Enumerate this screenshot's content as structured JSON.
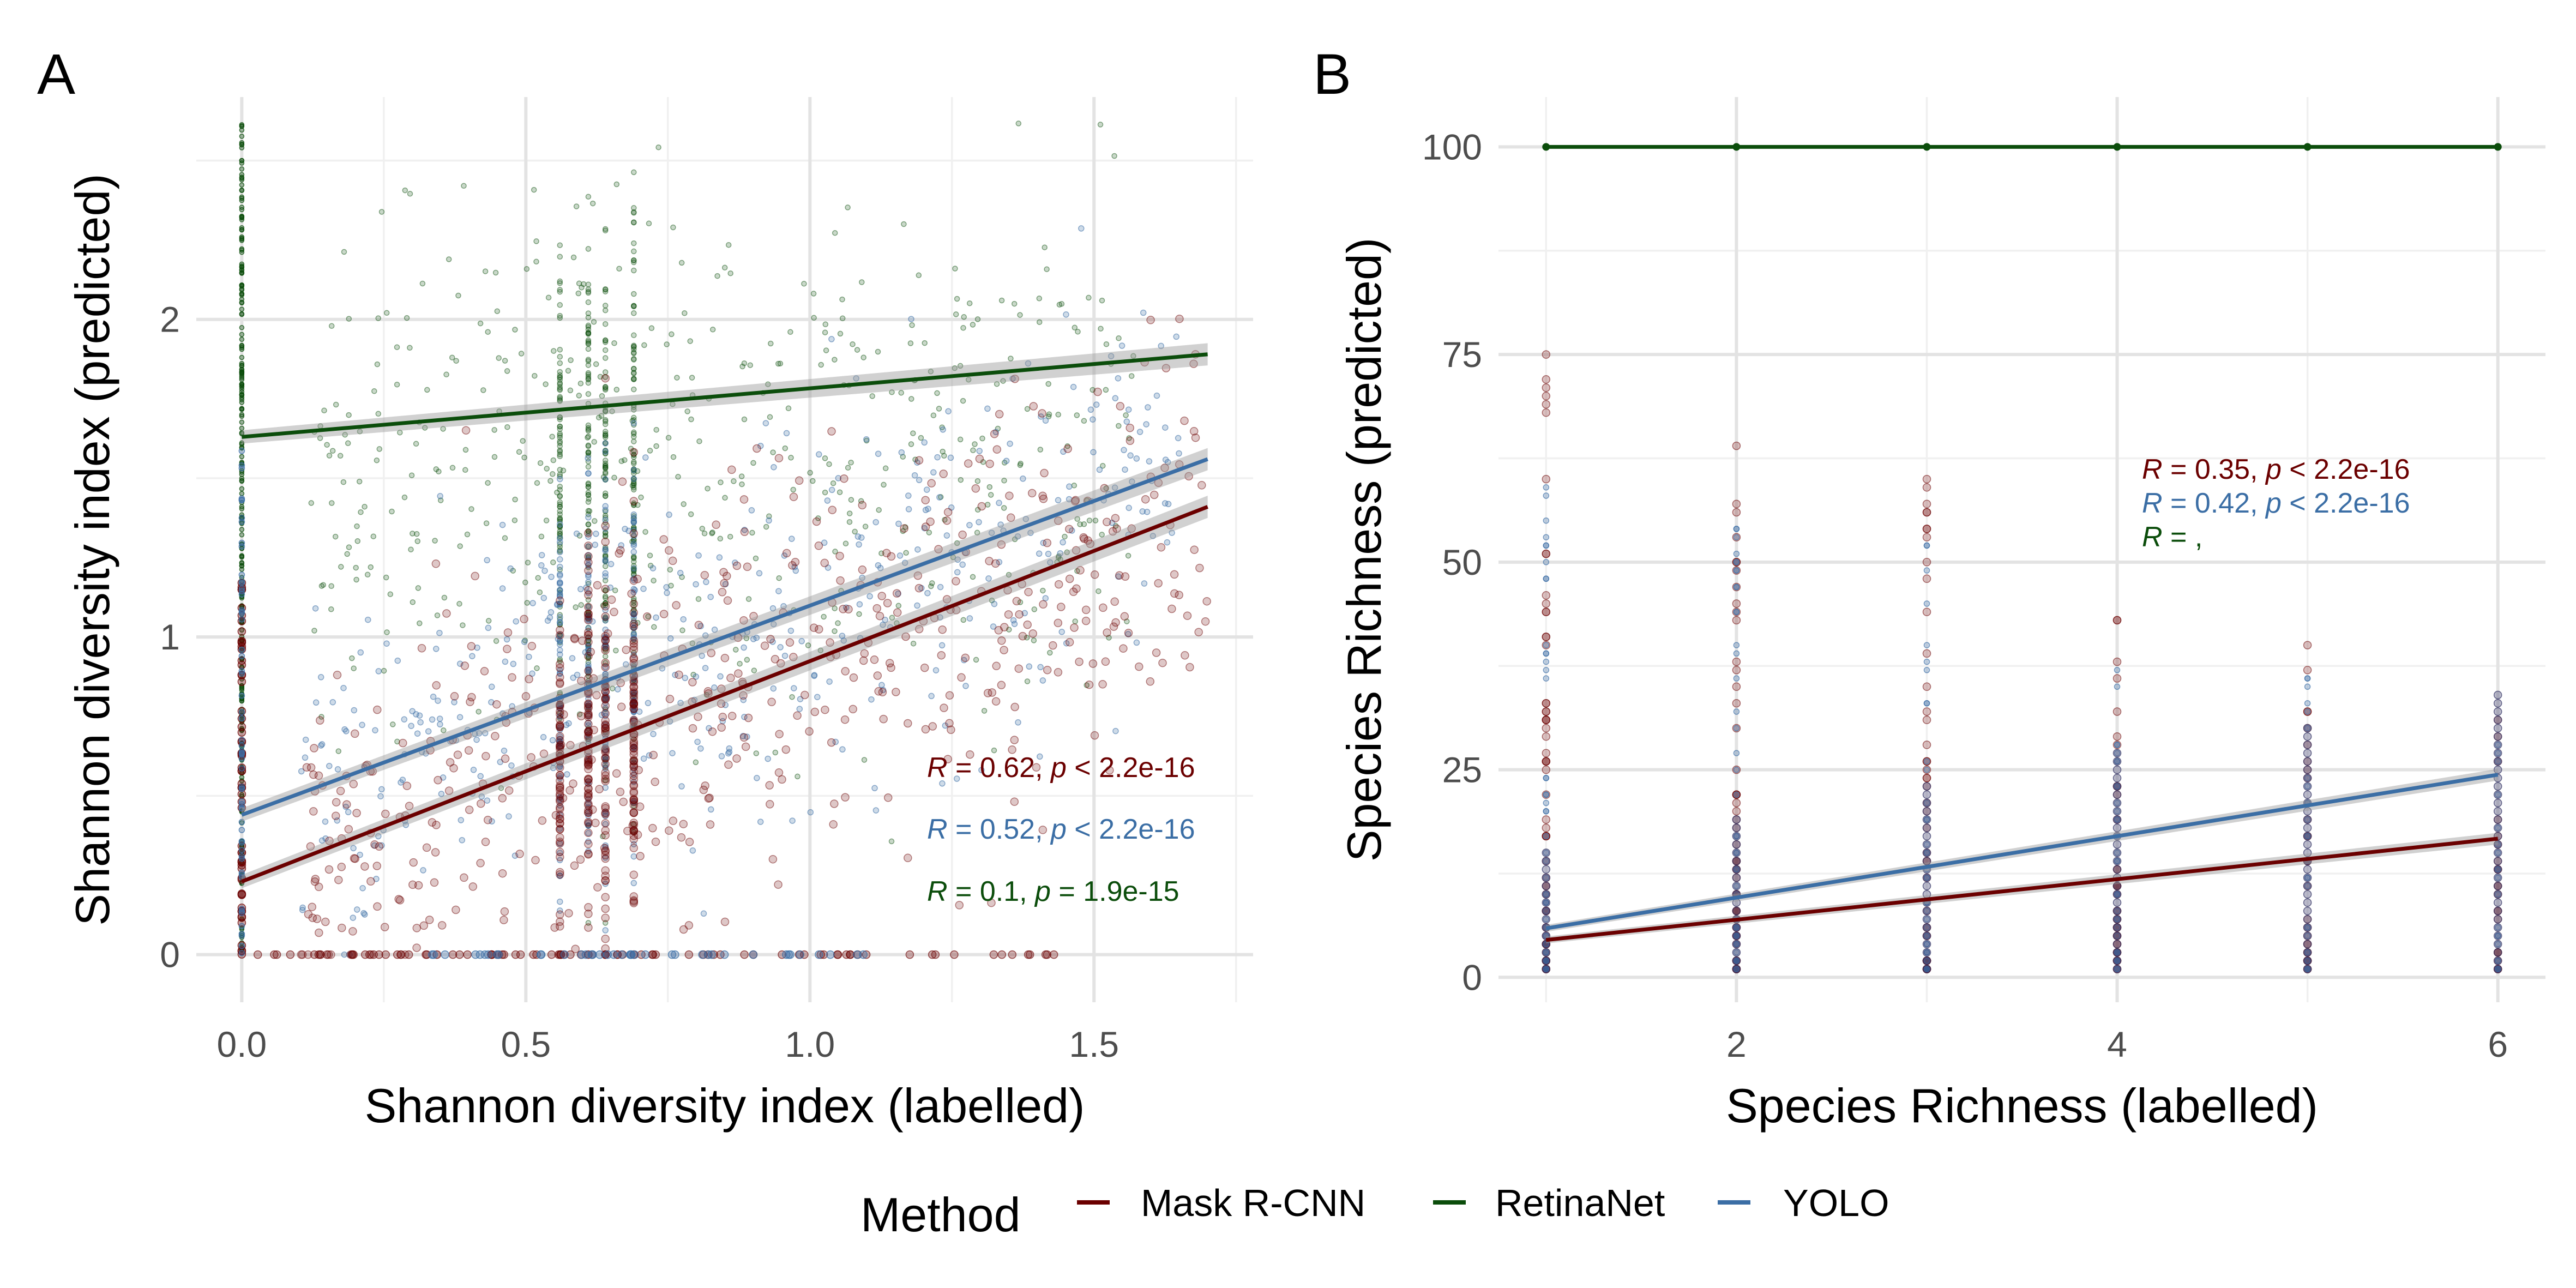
{
  "legend": {
    "title": "Method",
    "items": [
      {
        "label": "Mask R-CNN",
        "color": "#6b0000"
      },
      {
        "label": "RetinaNet",
        "color": "#0b4d0b"
      },
      {
        "label": "YOLO",
        "color": "#3b6ea5"
      }
    ]
  },
  "chart_data": [
    {
      "type": "scatter",
      "panel_tag": "A",
      "xlabel": "Shannon diversity index (labelled)",
      "ylabel": "Shannon diversity index (predicted)",
      "xlim": [
        -0.08,
        1.78
      ],
      "ylim": [
        -0.15,
        2.7
      ],
      "xticks": [
        "0.0",
        "0.5",
        "1.0",
        "1.5"
      ],
      "xtick_values": [
        0,
        0.5,
        1.0,
        1.5
      ],
      "yticks": [
        "0",
        "1",
        "2"
      ],
      "ytick_values": [
        0,
        1,
        2
      ],
      "grid": true,
      "series": [
        {
          "name": "Mask R-CNN",
          "color": "#6b0000",
          "fit": {
            "x": [
              0,
              1.7
            ],
            "y": [
              0.23,
              1.41
            ]
          },
          "points_cloud": {
            "x_range": [
              0,
              1.7
            ],
            "y_range": [
              0,
              1.8
            ],
            "note_visible": "dense scatter of semi-transparent points"
          },
          "annotation": {
            "R": "0.62",
            "p": "< 2.2e-16"
          }
        },
        {
          "name": "YOLO",
          "color": "#3b6ea5",
          "fit": {
            "x": [
              0,
              1.7
            ],
            "y": [
              0.44,
              1.56
            ]
          },
          "annotation": {
            "R": "0.52",
            "p": "< 2.2e-16"
          }
        },
        {
          "name": "RetinaNet",
          "color": "#0b4d0b",
          "fit": {
            "x": [
              0,
              1.7
            ],
            "y": [
              1.63,
              1.89
            ]
          },
          "annotation": {
            "R": "0.1",
            "p": "= 1.9e-15"
          }
        }
      ]
    },
    {
      "type": "scatter",
      "panel_tag": "B",
      "xlabel": "Species Richness (labelled)",
      "ylabel": "Species Richness (predicted)",
      "xlim": [
        0.75,
        6.25
      ],
      "ylim": [
        -3,
        106
      ],
      "xticks": [
        "2",
        "4",
        "6"
      ],
      "xtick_values": [
        2,
        4,
        6
      ],
      "yticks": [
        "0",
        "25",
        "50",
        "75",
        "100"
      ],
      "ytick_values": [
        0,
        25,
        50,
        75,
        100
      ],
      "grid": true,
      "series": [
        {
          "name": "Mask R-CNN",
          "color": "#6b0000",
          "fit": {
            "x": [
              1,
              6
            ],
            "y": [
              4.5,
              16.7
            ]
          },
          "annotation": {
            "R": "0.35",
            "p": "< 2.2e-16"
          }
        },
        {
          "name": "YOLO",
          "color": "#3b6ea5",
          "fit": {
            "x": [
              1,
              6
            ],
            "y": [
              5.9,
              24.4
            ]
          },
          "annotation": {
            "R": "0.42",
            "p": "< 2.2e-16"
          }
        },
        {
          "name": "RetinaNet",
          "color": "#0b4d0b",
          "line": {
            "x": [
              1,
              2,
              3,
              4,
              5,
              6
            ],
            "y": [
              100,
              100,
              100,
              100,
              100,
              100
            ]
          },
          "annotation": {
            "R": "",
            "p": ""
          }
        }
      ]
    }
  ]
}
